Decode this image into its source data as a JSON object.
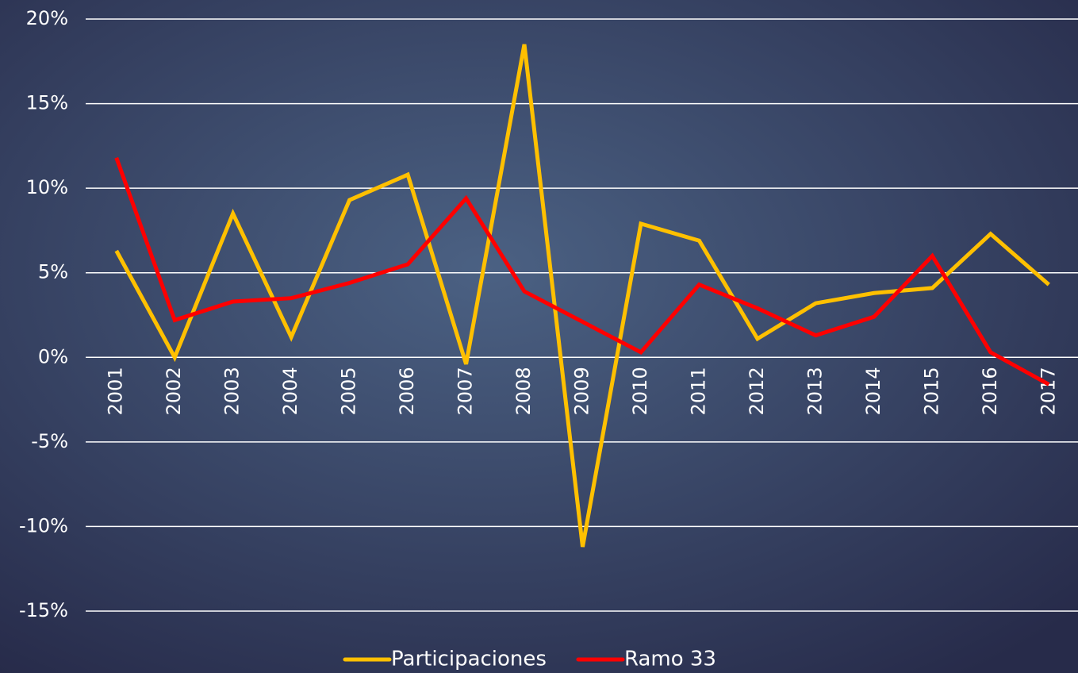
{
  "chart_data": {
    "type": "line",
    "categories": [
      "2001",
      "2002",
      "2003",
      "2004",
      "2005",
      "2006",
      "2007",
      "2008",
      "2009",
      "2010",
      "2011",
      "2012",
      "2013",
      "2014",
      "2015",
      "2016",
      "2017"
    ],
    "series": [
      {
        "name": "Participaciones",
        "color": "#ffc000",
        "values": [
          6.3,
          0,
          8.5,
          1.2,
          9.3,
          10.8,
          -0.4,
          18.5,
          -11.2,
          7.9,
          6.9,
          1.1,
          3.2,
          3.8,
          4.1,
          7.3,
          4.3
        ]
      },
      {
        "name": "Ramo 33",
        "color": "#ff0000",
        "values": [
          11.8,
          2.2,
          3.3,
          3.5,
          4.4,
          5.5,
          9.4,
          3.9,
          2.1,
          0.3,
          4.3,
          2.9,
          1.3,
          2.4,
          6.0,
          0.3,
          -1.6
        ]
      }
    ],
    "ylim": [
      -15,
      20
    ],
    "yticks": [
      {
        "value": -15,
        "label": "-15%"
      },
      {
        "value": -10,
        "label": "-10%"
      },
      {
        "value": -5,
        "label": "-5%"
      },
      {
        "value": 0,
        "label": "0%"
      },
      {
        "value": 5,
        "label": "5%"
      },
      {
        "value": 10,
        "label": "10%"
      },
      {
        "value": 15,
        "label": "15%"
      },
      {
        "value": 20,
        "label": "20%"
      }
    ],
    "grid": true,
    "legend": "bottom"
  }
}
